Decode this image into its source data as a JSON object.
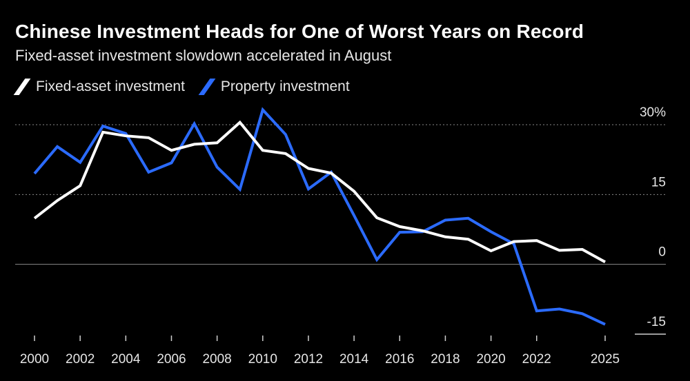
{
  "title": "Chinese Investment Heads for One of Worst Years on Record",
  "subtitle": "Fixed-asset investment slowdown accelerated in August",
  "chart_data": {
    "type": "line",
    "title": "Chinese Investment Heads for One of Worst Years on Record",
    "subtitle": "Fixed-asset investment slowdown accelerated in August",
    "xlabel": "",
    "ylabel": "",
    "x": [
      2000,
      2001,
      2002,
      2003,
      2004,
      2005,
      2006,
      2007,
      2008,
      2009,
      2010,
      2011,
      2012,
      2013,
      2014,
      2015,
      2016,
      2017,
      2018,
      2019,
      2020,
      2021,
      2022,
      2023,
      2024,
      2025
    ],
    "series": [
      {
        "name": "Fixed-asset investment",
        "color": "#ffffff",
        "values": [
          9.9,
          13.7,
          16.9,
          28.4,
          27.6,
          27.2,
          24.5,
          25.8,
          26.1,
          30.5,
          24.5,
          23.8,
          20.6,
          19.6,
          15.7,
          10.0,
          8.1,
          7.2,
          5.9,
          5.4,
          2.9,
          4.9,
          5.1,
          3.0,
          3.2,
          0.5
        ]
      },
      {
        "name": "Property investment",
        "color": "#2b6bff",
        "values": [
          19.5,
          25.3,
          21.9,
          29.7,
          28.1,
          19.8,
          21.8,
          30.2,
          20.9,
          16.1,
          33.2,
          27.9,
          16.2,
          19.8,
          10.5,
          1.0,
          6.9,
          7.0,
          9.5,
          9.9,
          7.0,
          4.4,
          -10.0,
          -9.6,
          -10.6,
          -12.9
        ]
      }
    ],
    "ylim": [
      -15,
      30
    ],
    "yticks": [
      {
        "value": 30,
        "label": "30%"
      },
      {
        "value": 15,
        "label": "15"
      },
      {
        "value": 0,
        "label": "0"
      },
      {
        "value": -15,
        "label": "-15"
      }
    ],
    "xticks": [
      2000,
      2002,
      2004,
      2006,
      2008,
      2010,
      2012,
      2014,
      2016,
      2018,
      2020,
      2022,
      2025
    ],
    "legend_position": "top-left",
    "grid": true
  }
}
